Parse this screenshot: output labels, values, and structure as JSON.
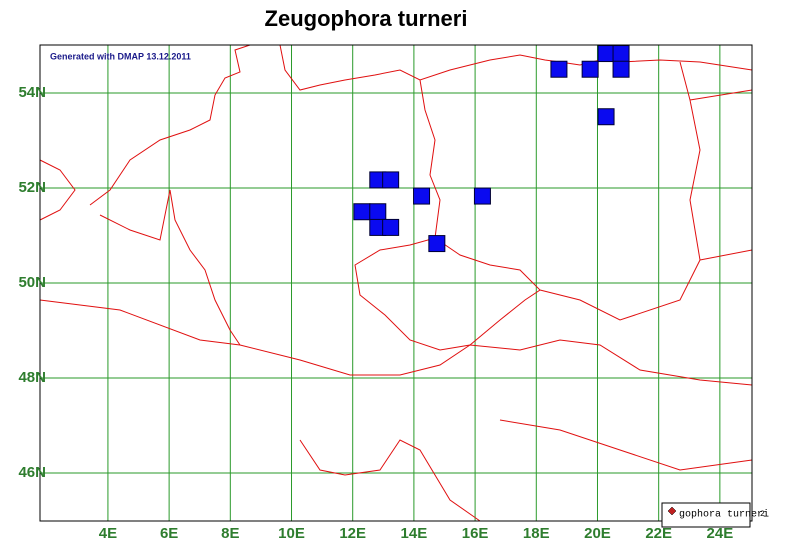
{
  "map": {
    "title": "Zeugophora turneri",
    "note": "Generated with DMAP 13.12.2011",
    "legend": "gophora turneri",
    "legend_extra": "2",
    "xlim": [
      1.78,
      25.05
    ],
    "ylim": [
      44.99,
      55.01
    ],
    "xticks": [
      {
        "value": 4,
        "label": "4E"
      },
      {
        "value": 6,
        "label": "6E"
      },
      {
        "value": 8,
        "label": "8E"
      },
      {
        "value": 10,
        "label": "10E"
      },
      {
        "value": 12,
        "label": "12E"
      },
      {
        "value": 14,
        "label": "14E"
      },
      {
        "value": 16,
        "label": "16E"
      },
      {
        "value": 18,
        "label": "18E"
      },
      {
        "value": 20,
        "label": "20E"
      },
      {
        "value": 22,
        "label": "22E"
      },
      {
        "value": 24,
        "label": "24E"
      }
    ],
    "yticks": [
      {
        "value": 46,
        "label": "46N"
      },
      {
        "value": 48,
        "label": "48N"
      },
      {
        "value": 50,
        "label": "50N"
      },
      {
        "value": 52,
        "label": "52N"
      },
      {
        "value": 54,
        "label": "54N"
      }
    ],
    "records": [
      {
        "lon": 18.74,
        "lat": 54.5
      },
      {
        "lon": 19.76,
        "lat": 54.5
      },
      {
        "lon": 20.28,
        "lat": 54.83
      },
      {
        "lon": 20.77,
        "lat": 54.83
      },
      {
        "lon": 20.77,
        "lat": 54.5
      },
      {
        "lon": 20.28,
        "lat": 53.5
      },
      {
        "lon": 12.82,
        "lat": 52.17
      },
      {
        "lon": 13.24,
        "lat": 52.17
      },
      {
        "lon": 14.25,
        "lat": 51.83
      },
      {
        "lon": 16.24,
        "lat": 51.83
      },
      {
        "lon": 12.3,
        "lat": 51.5
      },
      {
        "lon": 12.82,
        "lat": 51.5
      },
      {
        "lon": 12.82,
        "lat": 51.17
      },
      {
        "lon": 13.24,
        "lat": 51.17
      },
      {
        "lon": 14.75,
        "lat": 50.83
      }
    ]
  }
}
